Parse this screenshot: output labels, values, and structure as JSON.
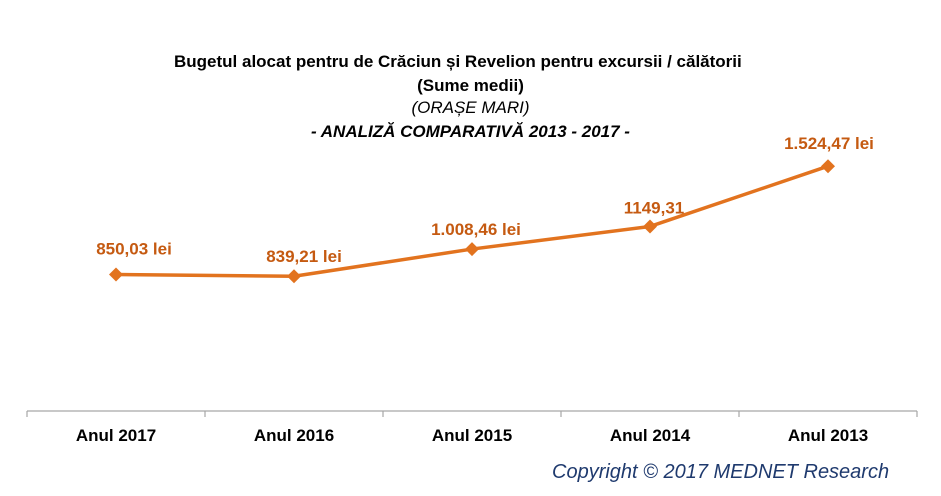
{
  "chart_data": {
    "type": "line",
    "title": "Bugetul alocat pentru de Crăciun și Revelion pentru excursii / călătorii",
    "subtitle_1": "(Sume medii)",
    "subtitle_2": "(ORAȘE MARI)",
    "subtitle_3": "- ANALIZĂ COMPARATIVĂ 2013 - 2017 -",
    "categories": [
      "Anul 2017",
      "Anul 2016",
      "Anul 2015",
      "Anul 2014",
      "Anul 2013"
    ],
    "values": [
      850.03,
      839.21,
      1008.46,
      1149.31,
      1524.47
    ],
    "data_labels": [
      "850,03 lei",
      "839,21 lei",
      "1.008,46 lei",
      "1149,31",
      "1.524,47 lei"
    ],
    "ylim": [
      0,
      1750
    ],
    "grid": false,
    "line_color": "#e2731f",
    "label_color": "#c55a11"
  },
  "copyright": "Copyright ©  2017 MEDNET Research"
}
